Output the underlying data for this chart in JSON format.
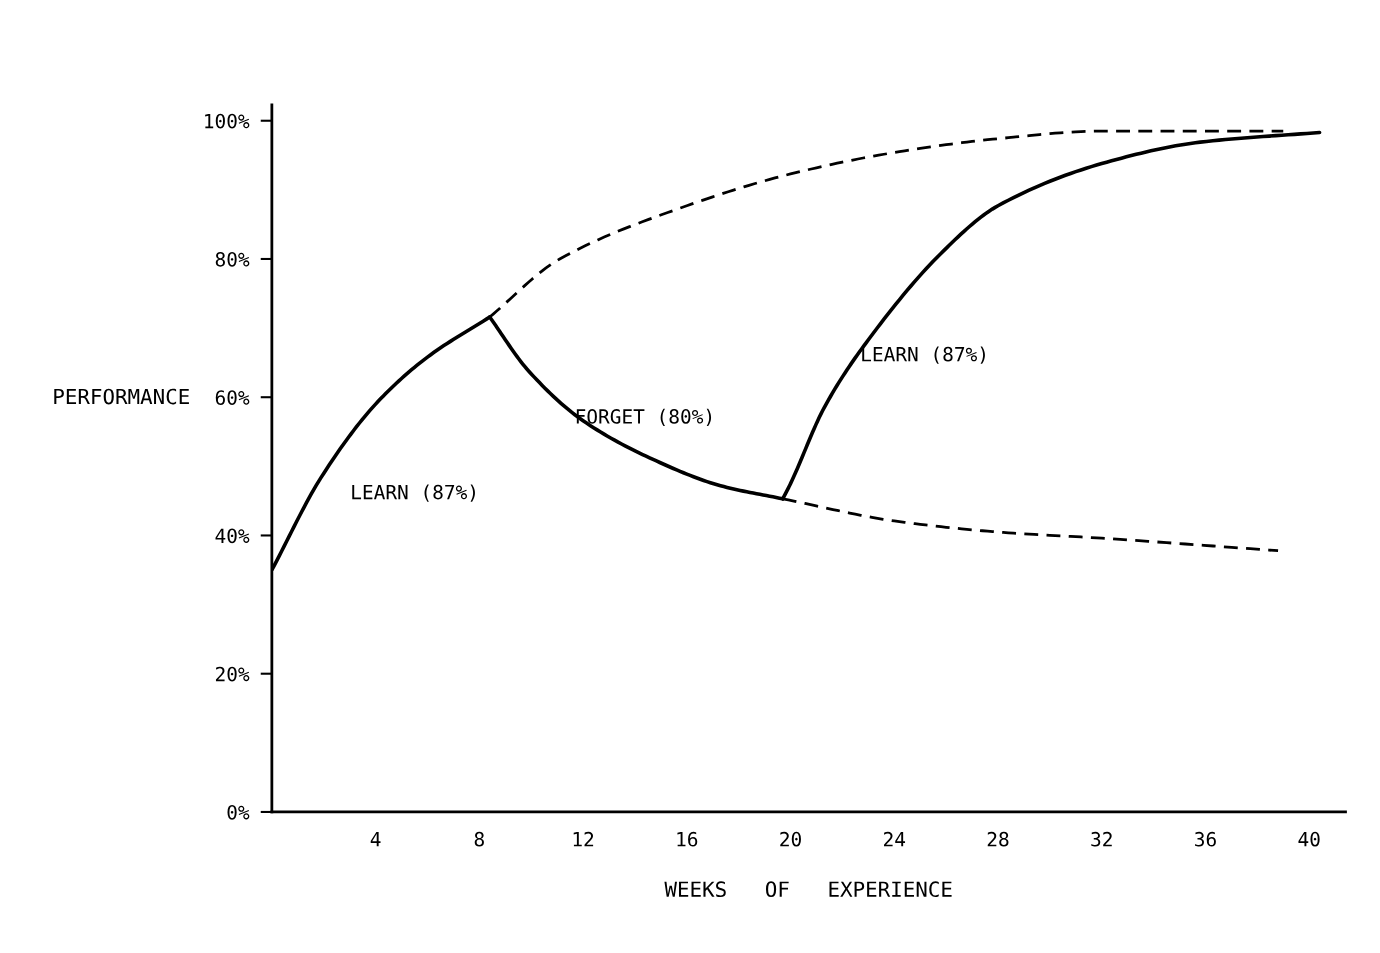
{
  "chart_data": {
    "type": "line",
    "xlabel": "WEEKS   OF   EXPERIENCE",
    "ylabel": "PERFORMANCE",
    "xlim": [
      0,
      41.4
    ],
    "ylim": [
      0,
      102.3
    ],
    "xticks": [
      4,
      8,
      12,
      16,
      20,
      24,
      28,
      32,
      36,
      40
    ],
    "yticks": [
      {
        "value": 0,
        "label": "0%"
      },
      {
        "value": 20,
        "label": "20%"
      },
      {
        "value": 40,
        "label": "40%"
      },
      {
        "value": 60,
        "label": "60%"
      },
      {
        "value": 80,
        "label": "80%"
      },
      {
        "value": 100,
        "label": "100%"
      }
    ],
    "grid": false,
    "legend": false,
    "marker": "none",
    "series": [
      {
        "color": "#000000",
        "line_style": "solid",
        "x": [
          0,
          1.9,
          4,
          6,
          8.4
        ],
        "values": [
          35,
          48.4,
          59,
          65.8,
          71.6
        ]
      },
      {
        "color": "#000000",
        "line_style": "solid",
        "x": [
          8.4,
          9.9,
          12,
          14.7,
          17.3,
          19.7
        ],
        "values": [
          71.6,
          63.8,
          56.6,
          51,
          47.2,
          45.3
        ]
      },
      {
        "color": "#000000",
        "line_style": "solid",
        "x": [
          19.7,
          20,
          21.3,
          22.9,
          25.8,
          28,
          32,
          35.8,
          40.4
        ],
        "values": [
          45.3,
          47.5,
          58.5,
          67.8,
          80.8,
          87.7,
          93.8,
          96.9,
          98.3
        ]
      },
      {
        "color": "#000000",
        "line_style": "dashed",
        "x": [
          8.4,
          11.1,
          16,
          20,
          24,
          28,
          32,
          39
        ],
        "values": [
          71.6,
          80,
          87.7,
          92.3,
          95.4,
          97.4,
          98.5,
          98.5
        ]
      },
      {
        "color": "#000000",
        "line_style": "dashed",
        "x": [
          19.7,
          24,
          28,
          32,
          38.8
        ],
        "values": [
          45.3,
          42.1,
          40.5,
          39.6,
          37.8
        ]
      }
    ],
    "annotations": [
      "LEARN (87%)",
      "FORGET (80%)",
      "LEARN (87%)"
    ]
  }
}
